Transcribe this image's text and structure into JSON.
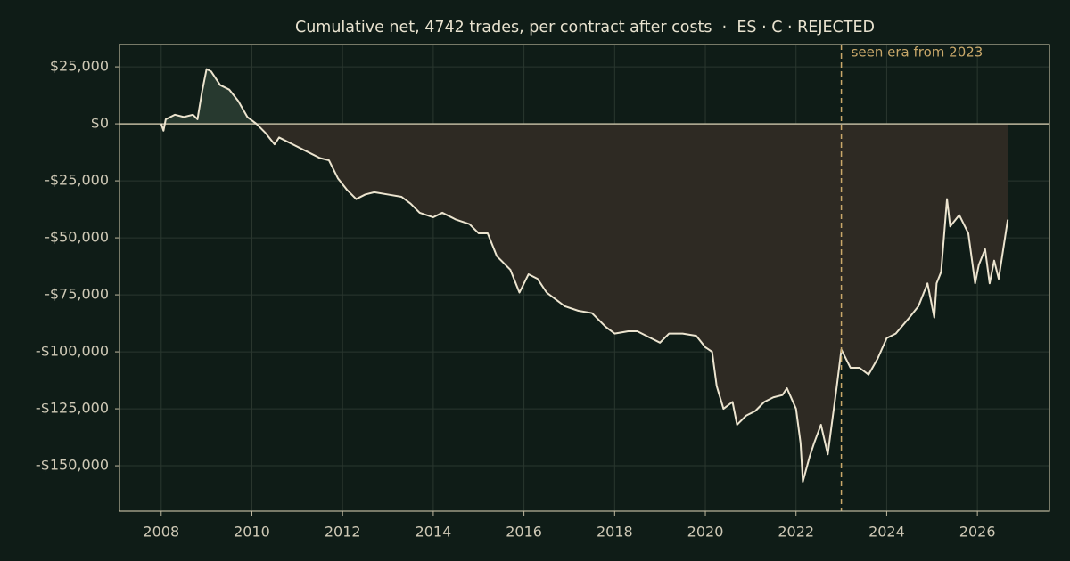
{
  "chart_data": {
    "type": "line",
    "title": "Cumulative net, 4742 trades, per contract after costs  ·  ES · C · REJECTED",
    "x": [
      2008.0,
      2008.05,
      2008.1,
      2008.3,
      2008.5,
      2008.7,
      2008.8,
      2008.9,
      2009.0,
      2009.1,
      2009.3,
      2009.5,
      2009.7,
      2009.9,
      2010.1,
      2010.3,
      2010.5,
      2010.6,
      2010.9,
      2011.2,
      2011.5,
      2011.7,
      2011.9,
      2012.1,
      2012.3,
      2012.5,
      2012.7,
      2013.0,
      2013.3,
      2013.5,
      2013.7,
      2014.0,
      2014.2,
      2014.5,
      2014.8,
      2015.0,
      2015.2,
      2015.4,
      2015.7,
      2015.8,
      2015.9,
      2016.1,
      2016.3,
      2016.5,
      2016.7,
      2016.9,
      2017.2,
      2017.5,
      2017.8,
      2018.0,
      2018.3,
      2018.5,
      2018.8,
      2019.0,
      2019.2,
      2019.5,
      2019.8,
      2020.0,
      2020.15,
      2020.25,
      2020.4,
      2020.6,
      2020.7,
      2020.9,
      2021.1,
      2021.3,
      2021.5,
      2021.7,
      2021.8,
      2022.0,
      2022.1,
      2022.15,
      2022.3,
      2022.4,
      2022.55,
      2022.7,
      2022.8,
      2022.9,
      2023.0,
      2023.2,
      2023.4,
      2023.6,
      2023.8,
      2024.0,
      2024.2,
      2024.5,
      2024.7,
      2024.9,
      2025.05,
      2025.1,
      2025.2,
      2025.33,
      2025.4,
      2025.6,
      2025.8,
      2025.95,
      2026.03,
      2026.17,
      2026.27,
      2026.37,
      2026.47,
      2026.57,
      2026.67
    ],
    "values": [
      0,
      -3000,
      2000,
      4000,
      3000,
      4000,
      2000,
      14000,
      24000,
      23000,
      17000,
      15000,
      10000,
      3000,
      0,
      -4000,
      -9000,
      -6000,
      -9000,
      -12000,
      -15000,
      -16000,
      -24000,
      -29000,
      -33000,
      -31000,
      -30000,
      -31000,
      -32000,
      -35000,
      -39000,
      -41000,
      -39000,
      -42000,
      -44000,
      -48000,
      -48000,
      -58000,
      -64000,
      -69000,
      -74000,
      -66000,
      -68000,
      -74000,
      -77000,
      -80000,
      -82000,
      -83000,
      -89000,
      -92000,
      -91000,
      -91000,
      -94000,
      -96000,
      -92000,
      -92000,
      -93000,
      -98000,
      -100000,
      -115000,
      -125000,
      -122000,
      -132000,
      -128000,
      -126000,
      -122000,
      -120000,
      -119000,
      -116000,
      -125000,
      -140000,
      -157000,
      -146000,
      -140000,
      -132000,
      -145000,
      -130000,
      -115000,
      -99000,
      -107000,
      -107000,
      -110000,
      -103000,
      -94000,
      -92000,
      -85000,
      -80000,
      -70000,
      -85000,
      -70000,
      -65000,
      -33000,
      -45000,
      -40000,
      -48000,
      -70000,
      -62000,
      -55000,
      -70000,
      -60000,
      -68000,
      -55000,
      -42000
    ],
    "color": "#ece4cf",
    "fill_positive": "#27392f",
    "fill_negative": "#2e2a23",
    "xlim": [
      2007.08,
      2027.59
    ],
    "ylim": [
      -169900,
      34800
    ],
    "xticks": [
      2008,
      2010,
      2012,
      2014,
      2016,
      2018,
      2020,
      2022,
      2024,
      2026
    ],
    "yticks": [
      {
        "value": 25000,
        "label": "$25,000"
      },
      {
        "value": 0,
        "label": "$0"
      },
      {
        "value": -25000,
        "label": "-$25,000"
      },
      {
        "value": -50000,
        "label": "-$50,000"
      },
      {
        "value": -75000,
        "label": "-$75,000"
      },
      {
        "value": -100000,
        "label": "-$100,000"
      },
      {
        "value": -125000,
        "label": "-$125,000"
      },
      {
        "value": -150000,
        "label": "-$150,000"
      }
    ],
    "grid": true,
    "annotation": {
      "x": 2023,
      "text": "seen era from 2023",
      "color": "#c9a86a"
    }
  }
}
